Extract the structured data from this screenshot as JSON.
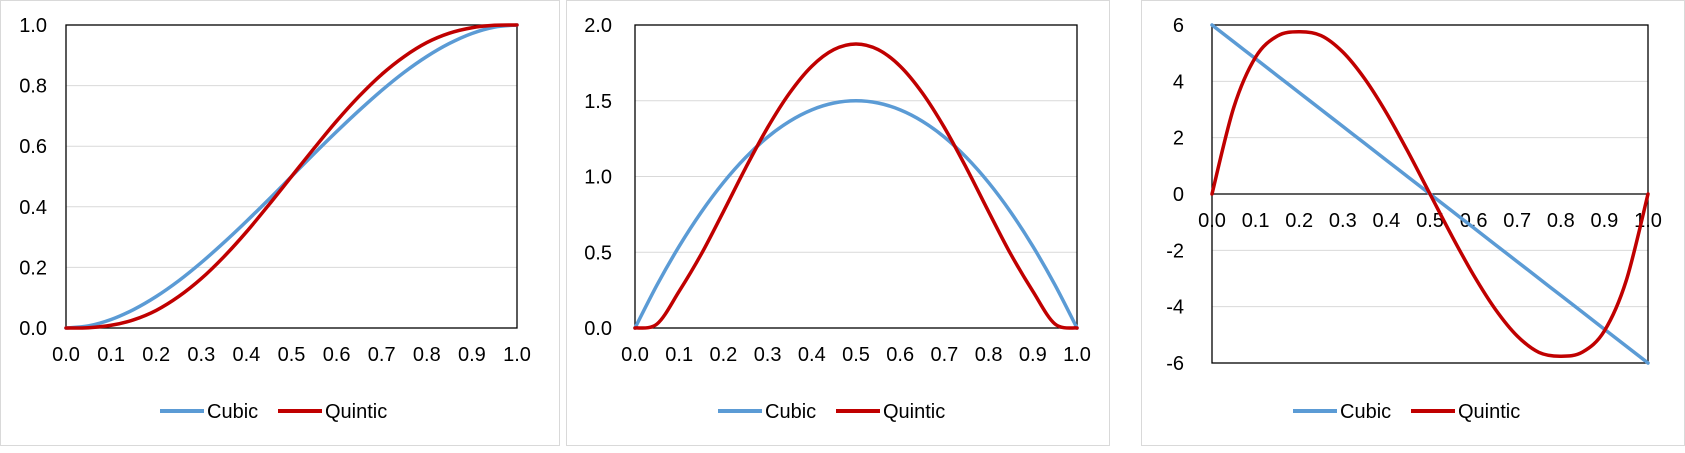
{
  "chart_data": [
    {
      "type": "line",
      "title": "",
      "xlabel": "",
      "ylabel": "",
      "xlim": [
        0,
        1
      ],
      "ylim": [
        0,
        1
      ],
      "x_ticks": [
        "0.0",
        "0.1",
        "0.2",
        "0.3",
        "0.4",
        "0.5",
        "0.6",
        "0.7",
        "0.8",
        "0.9",
        "1.0"
      ],
      "y_ticks": [
        "0.0",
        "0.2",
        "0.4",
        "0.6",
        "0.8",
        "1.0"
      ],
      "grid": "horizontal",
      "legend": "bottom",
      "x": [
        0.0,
        0.05,
        0.1,
        0.15,
        0.2,
        0.25,
        0.3,
        0.35,
        0.4,
        0.45,
        0.5,
        0.55,
        0.6,
        0.65,
        0.7,
        0.75,
        0.8,
        0.85,
        0.9,
        0.95,
        1.0
      ],
      "series": [
        {
          "name": "Cubic",
          "color": "#5B9BD5",
          "values": [
            0.0,
            0.007,
            0.028,
            0.061,
            0.104,
            0.156,
            0.216,
            0.282,
            0.352,
            0.425,
            0.5,
            0.575,
            0.648,
            0.718,
            0.784,
            0.844,
            0.896,
            0.939,
            0.972,
            0.993,
            1.0
          ]
        },
        {
          "name": "Quintic",
          "color": "#C00000",
          "values": [
            0.0,
            0.001,
            0.009,
            0.027,
            0.058,
            0.104,
            0.163,
            0.235,
            0.317,
            0.407,
            0.5,
            0.593,
            0.683,
            0.765,
            0.837,
            0.896,
            0.942,
            0.973,
            0.991,
            0.999,
            1.0
          ]
        }
      ]
    },
    {
      "type": "line",
      "title": "",
      "xlabel": "",
      "ylabel": "",
      "xlim": [
        0,
        1
      ],
      "ylim": [
        0,
        2
      ],
      "x_ticks": [
        "0.0",
        "0.1",
        "0.2",
        "0.3",
        "0.4",
        "0.5",
        "0.6",
        "0.7",
        "0.8",
        "0.9",
        "1.0"
      ],
      "y_ticks": [
        "0.0",
        "0.5",
        "1.0",
        "1.5",
        "2.0"
      ],
      "grid": "horizontal",
      "legend": "bottom",
      "x": [
        0.0,
        0.05,
        0.1,
        0.15,
        0.2,
        0.25,
        0.3,
        0.35,
        0.4,
        0.45,
        0.5,
        0.55,
        0.6,
        0.65,
        0.7,
        0.75,
        0.8,
        0.85,
        0.9,
        0.95,
        1.0
      ],
      "series": [
        {
          "name": "Cubic",
          "color": "#5B9BD5",
          "values": [
            0.0,
            0.285,
            0.54,
            0.765,
            0.96,
            1.125,
            1.26,
            1.365,
            1.44,
            1.485,
            1.5,
            1.485,
            1.44,
            1.365,
            1.26,
            1.125,
            0.96,
            0.765,
            0.54,
            0.285,
            0.0
          ]
        },
        {
          "name": "Quintic",
          "color": "#C00000",
          "values": [
            0.0,
            0.027,
            0.243,
            0.488,
            0.768,
            1.055,
            1.323,
            1.552,
            1.728,
            1.838,
            1.875,
            1.838,
            1.728,
            1.552,
            1.323,
            1.055,
            0.768,
            0.488,
            0.243,
            0.027,
            0.0
          ]
        }
      ]
    },
    {
      "type": "line",
      "title": "",
      "xlabel": "",
      "ylabel": "",
      "xlim": [
        0,
        1
      ],
      "ylim": [
        -6,
        6
      ],
      "x_ticks": [
        "0.0",
        "0.1",
        "0.2",
        "0.3",
        "0.4",
        "0.5",
        "0.6",
        "0.7",
        "0.8",
        "0.9",
        "1.0"
      ],
      "y_ticks": [
        "-6",
        "-4",
        "-2",
        "0",
        "2",
        "4",
        "6"
      ],
      "grid": "horizontal",
      "legend": "bottom",
      "x": [
        0.0,
        0.05,
        0.1,
        0.15,
        0.2,
        0.25,
        0.3,
        0.35,
        0.4,
        0.45,
        0.5,
        0.55,
        0.6,
        0.65,
        0.7,
        0.75,
        0.8,
        0.85,
        0.9,
        0.95,
        1.0
      ],
      "series": [
        {
          "name": "Cubic",
          "color": "#5B9BD5",
          "values": [
            6.0,
            5.4,
            4.8,
            4.2,
            3.6,
            3.0,
            2.4,
            1.8,
            1.2,
            0.6,
            0.0,
            -0.6,
            -1.2,
            -1.8,
            -2.4,
            -3.0,
            -3.6,
            -4.2,
            -4.8,
            -5.4,
            -6.0
          ]
        },
        {
          "name": "Quintic",
          "color": "#C00000",
          "values": [
            0.0,
            3.078,
            4.86,
            5.61,
            5.76,
            5.625,
            5.04,
            4.095,
            2.88,
            1.485,
            0.0,
            -1.485,
            -2.88,
            -4.095,
            -5.04,
            -5.625,
            -5.76,
            -5.61,
            -4.86,
            -3.078,
            0.0
          ]
        }
      ]
    }
  ]
}
